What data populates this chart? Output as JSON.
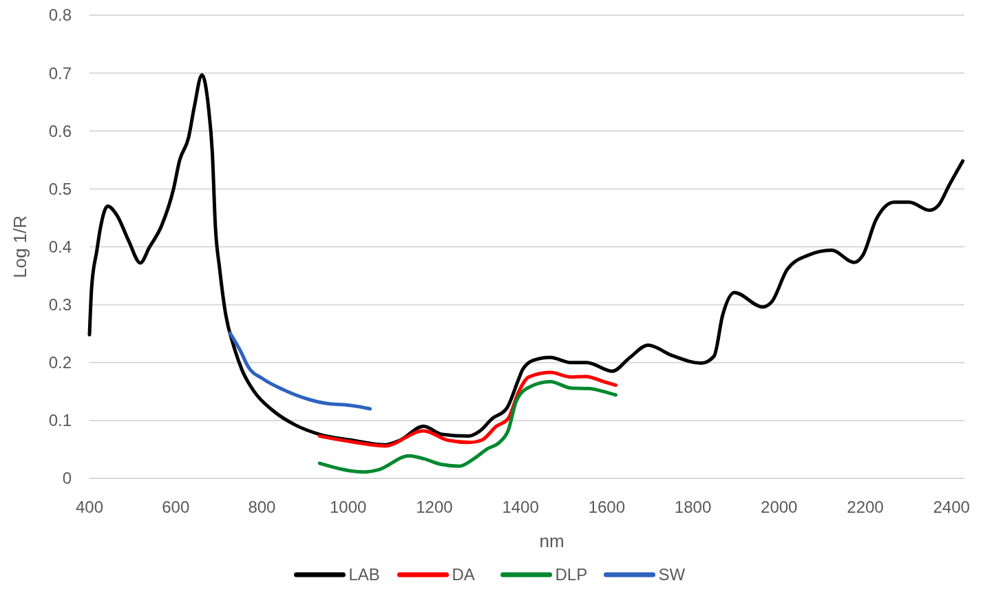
{
  "chart_data": {
    "type": "line",
    "xlabel": "nm",
    "ylabel": "Log 1/R",
    "xlim": [
      400,
      2430
    ],
    "xticks": [
      400,
      600,
      800,
      1000,
      1200,
      1400,
      1600,
      1800,
      2000,
      2200,
      2400
    ],
    "ylim": [
      0,
      0.8
    ],
    "yticks": [
      0,
      0.1,
      0.2,
      0.3,
      0.4,
      0.5,
      0.6,
      0.7,
      0.8
    ],
    "grid": "y",
    "legend": "bottom",
    "marker": "none",
    "line_style": "solid",
    "series": [
      {
        "name": "LAB",
        "color": "#000000",
        "x": [
          400,
          405,
          417,
          426,
          442,
          464,
          491,
          518,
          539,
          567,
          595,
          609,
          630,
          643,
          661,
          676,
          685,
          692,
          702,
          716,
          734,
          754,
          782,
          824,
          878,
          934,
          1009,
          1085,
          1121,
          1175,
          1217,
          1279,
          1306,
          1334,
          1368,
          1396,
          1405,
          1430,
          1469,
          1517,
          1554,
          1613,
          1654,
          1696,
          1752,
          1820,
          1849,
          1869,
          1896,
          1962,
          1983,
          2019,
          2066,
          2122,
          2174,
          2194,
          2225,
          2267,
          2302,
          2349,
          2369,
          2395,
          2426
        ],
        "values": [
          0.248,
          0.33,
          0.393,
          0.435,
          0.47,
          0.454,
          0.41,
          0.372,
          0.399,
          0.436,
          0.5,
          0.549,
          0.589,
          0.641,
          0.697,
          0.641,
          0.562,
          0.436,
          0.362,
          0.283,
          0.23,
          0.187,
          0.15,
          0.118,
          0.092,
          0.076,
          0.066,
          0.058,
          0.066,
          0.09,
          0.076,
          0.073,
          0.082,
          0.103,
          0.121,
          0.172,
          0.188,
          0.204,
          0.209,
          0.2,
          0.2,
          0.185,
          0.209,
          0.23,
          0.212,
          0.199,
          0.211,
          0.282,
          0.321,
          0.296,
          0.305,
          0.361,
          0.385,
          0.394,
          0.373,
          0.385,
          0.447,
          0.477,
          0.477,
          0.463,
          0.471,
          0.507,
          0.548
        ]
      },
      {
        "name": "DA",
        "color": "#ff0000",
        "x": [
          934,
          1009,
          1085,
          1175,
          1231,
          1282,
          1310,
          1344,
          1371,
          1396,
          1419,
          1469,
          1517,
          1551,
          1593,
          1621
        ],
        "values": [
          0.073,
          0.063,
          0.056,
          0.082,
          0.066,
          0.062,
          0.066,
          0.09,
          0.103,
          0.15,
          0.175,
          0.183,
          0.175,
          0.176,
          0.167,
          0.161
        ]
      },
      {
        "name": "DLP",
        "color": "#00892f",
        "x": [
          934,
          1037,
          1071,
          1141,
          1175,
          1217,
          1258,
          1292,
          1323,
          1351,
          1371,
          1391,
          1419,
          1469,
          1517,
          1559,
          1593,
          1621
        ],
        "values": [
          0.026,
          0.011,
          0.015,
          0.039,
          0.034,
          0.024,
          0.021,
          0.034,
          0.051,
          0.062,
          0.082,
          0.135,
          0.157,
          0.167,
          0.156,
          0.155,
          0.15,
          0.144
        ]
      },
      {
        "name": "SW",
        "color": "#2e63bf",
        "x": [
          726,
          751,
          768,
          802,
          850,
          906,
          954,
          995,
          1051
        ],
        "values": [
          0.251,
          0.219,
          0.193,
          0.172,
          0.153,
          0.137,
          0.129,
          0.127,
          0.12
        ]
      }
    ]
  }
}
